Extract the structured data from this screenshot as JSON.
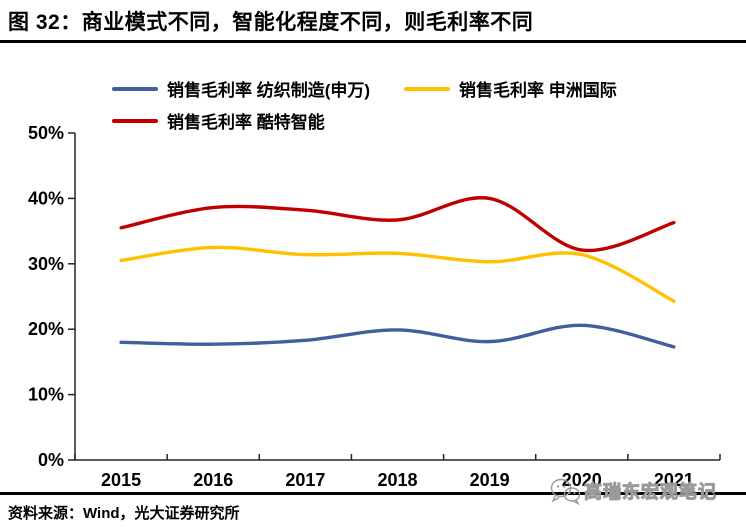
{
  "header": {
    "title": "图 32：商业模式不同，智能化程度不同，则毛利率不同"
  },
  "footer": {
    "source": "资料来源：Wind，光大证券研究所",
    "watermark": "高瑞东宏观笔记"
  },
  "chart_data": {
    "type": "line",
    "title": "",
    "xlabel": "",
    "ylabel": "",
    "categories": [
      "2015",
      "2016",
      "2017",
      "2018",
      "2019",
      "2020",
      "2021"
    ],
    "series": [
      {
        "name": "销售毛利率 纺织制造(申万)",
        "color": "#415f9d",
        "values": [
          18.0,
          17.7,
          18.3,
          19.9,
          18.1,
          20.6,
          17.3
        ]
      },
      {
        "name": "销售毛利率 申洲国际",
        "color": "#ffc000",
        "values": [
          30.5,
          32.5,
          31.4,
          31.6,
          30.3,
          31.4,
          24.3
        ]
      },
      {
        "name": "销售毛利率 酷特智能",
        "color": "#c00000",
        "values": [
          35.5,
          38.6,
          38.2,
          36.7,
          40.0,
          32.1,
          36.3
        ]
      }
    ],
    "ylim": [
      0,
      50
    ],
    "ytick_labels": [
      "0%",
      "10%",
      "20%",
      "30%",
      "40%",
      "50%"
    ],
    "grid": false,
    "line_style": "smooth",
    "legend_position": "top-left"
  }
}
